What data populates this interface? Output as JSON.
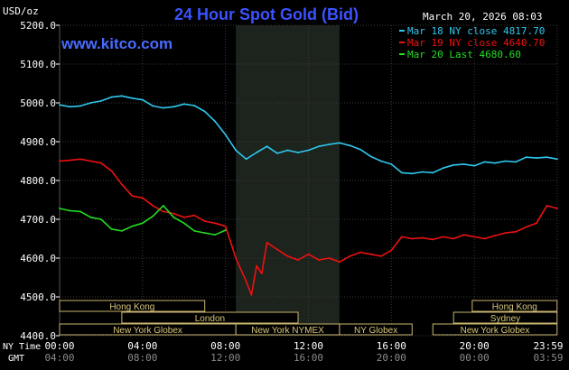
{
  "header": {
    "unit_label": "USD/oz",
    "title": "24 Hour Spot Gold (Bid)",
    "datetime": "March 20, 2026 08:03",
    "watermark": "www.kitco.com"
  },
  "legend": [
    {
      "label": "Mar 18 NY close 4817.70",
      "color": "#2ec7ee"
    },
    {
      "label": "Mar 19 NY close 4640.70",
      "color": "#ee1111"
    },
    {
      "label": "Mar 20 Last 4680.60",
      "color": "#22dd22"
    }
  ],
  "axes": {
    "row1_label": "NY Time",
    "row2_label": "GMT",
    "ny_ticks": [
      "00:00",
      "04:00",
      "08:00",
      "12:00",
      "16:00",
      "20:00",
      "23:59"
    ],
    "gmt_ticks": [
      "04:00",
      "08:00",
      "12:00",
      "16:00",
      "20:00",
      "00:00",
      "03:59"
    ]
  },
  "sessions": [
    {
      "label": "Hong Kong",
      "row": 0,
      "start": -2.2,
      "end": 7.0
    },
    {
      "label": "Hong Kong",
      "row": 0,
      "start": 19.9,
      "end": 23.99
    },
    {
      "label": "Sydney",
      "row": 1,
      "start": 19.0,
      "end": 23.99
    },
    {
      "label": "London",
      "row": 1,
      "start": 3.0,
      "end": 11.5
    },
    {
      "label": "New York Globex",
      "row": 2,
      "start": -2.2,
      "end": 8.5
    },
    {
      "label": "New York NYMEX",
      "row": 2,
      "start": 8.5,
      "end": 13.5
    },
    {
      "label": "NY Globex",
      "row": 2,
      "start": 13.5,
      "end": 17.0
    },
    {
      "label": "New York Globex",
      "row": 2,
      "start": 18.0,
      "end": 23.99
    }
  ],
  "chart_data": {
    "type": "line",
    "title": "24 Hour Spot Gold (Bid)",
    "ylabel": "USD/oz",
    "xlabel": "NY Time",
    "xlim": [
      0,
      24
    ],
    "ylim": [
      4400,
      5200
    ],
    "yticks": [
      4400,
      4500,
      4600,
      4700,
      4800,
      4900,
      5000,
      5100,
      5200
    ],
    "ytick_labels": [
      "4400.0",
      "4500.0",
      "4600.0",
      "4700.0",
      "4800.0",
      "4900.0",
      "5000.0",
      "5100.0",
      "5200.0"
    ],
    "shaded_region": [
      8.5,
      13.5
    ],
    "grid": true,
    "legend_position": "top-right",
    "series": [
      {
        "name": "Mar 18 NY close 4817.70",
        "color": "#2ec7ee",
        "x": [
          0,
          0.5,
          1,
          1.5,
          2,
          2.5,
          3,
          3.5,
          4,
          4.5,
          5,
          5.5,
          6,
          6.5,
          7,
          7.5,
          8,
          8.5,
          9,
          9.5,
          10,
          10.5,
          11,
          11.5,
          12,
          12.5,
          13,
          13.5,
          14,
          14.5,
          15,
          15.5,
          16,
          16.5,
          17,
          17.5,
          18,
          18.5,
          19,
          19.5,
          20,
          20.5,
          21,
          21.5,
          22,
          22.5,
          23,
          23.5,
          24
        ],
        "y": [
          4995,
          4990,
          4992,
          5000,
          5005,
          5015,
          5018,
          5012,
          5008,
          4992,
          4987,
          4990,
          4997,
          4993,
          4978,
          4952,
          4918,
          4878,
          4855,
          4872,
          4888,
          4870,
          4878,
          4872,
          4878,
          4888,
          4893,
          4897,
          4890,
          4880,
          4862,
          4850,
          4842,
          4820,
          4818,
          4822,
          4820,
          4832,
          4840,
          4842,
          4838,
          4848,
          4845,
          4850,
          4848,
          4860,
          4858,
          4860,
          4855
        ]
      },
      {
        "name": "Mar 19 NY close 4640.70",
        "color": "#ee1111",
        "x": [
          0,
          0.5,
          1,
          1.5,
          2,
          2.5,
          3,
          3.5,
          4,
          4.5,
          5,
          5.5,
          6,
          6.5,
          7,
          7.5,
          8,
          8.5,
          9,
          9.25,
          9.5,
          9.75,
          10,
          10.5,
          11,
          11.5,
          12,
          12.5,
          13,
          13.5,
          14,
          14.5,
          15,
          15.5,
          16,
          16.5,
          17,
          17.5,
          18,
          18.5,
          19,
          19.5,
          20,
          20.5,
          21,
          21.5,
          22,
          22.5,
          23,
          23.5,
          24
        ],
        "y": [
          4850,
          4852,
          4855,
          4850,
          4845,
          4825,
          4790,
          4760,
          4755,
          4735,
          4720,
          4715,
          4705,
          4710,
          4695,
          4690,
          4682,
          4600,
          4540,
          4505,
          4580,
          4560,
          4640,
          4622,
          4605,
          4595,
          4610,
          4595,
          4600,
          4590,
          4605,
          4615,
          4610,
          4605,
          4620,
          4655,
          4650,
          4652,
          4648,
          4655,
          4650,
          4660,
          4655,
          4650,
          4658,
          4665,
          4668,
          4680,
          4690,
          4735,
          4728
        ]
      },
      {
        "name": "Mar 20 Last 4680.60",
        "color": "#22dd22",
        "x": [
          0,
          0.5,
          1,
          1.5,
          2,
          2.5,
          3,
          3.5,
          4,
          4.5,
          5,
          5.5,
          6,
          6.5,
          7,
          7.5,
          8
        ],
        "y": [
          4728,
          4722,
          4720,
          4705,
          4700,
          4675,
          4670,
          4682,
          4690,
          4708,
          4735,
          4705,
          4690,
          4670,
          4665,
          4660,
          4672
        ]
      }
    ]
  }
}
